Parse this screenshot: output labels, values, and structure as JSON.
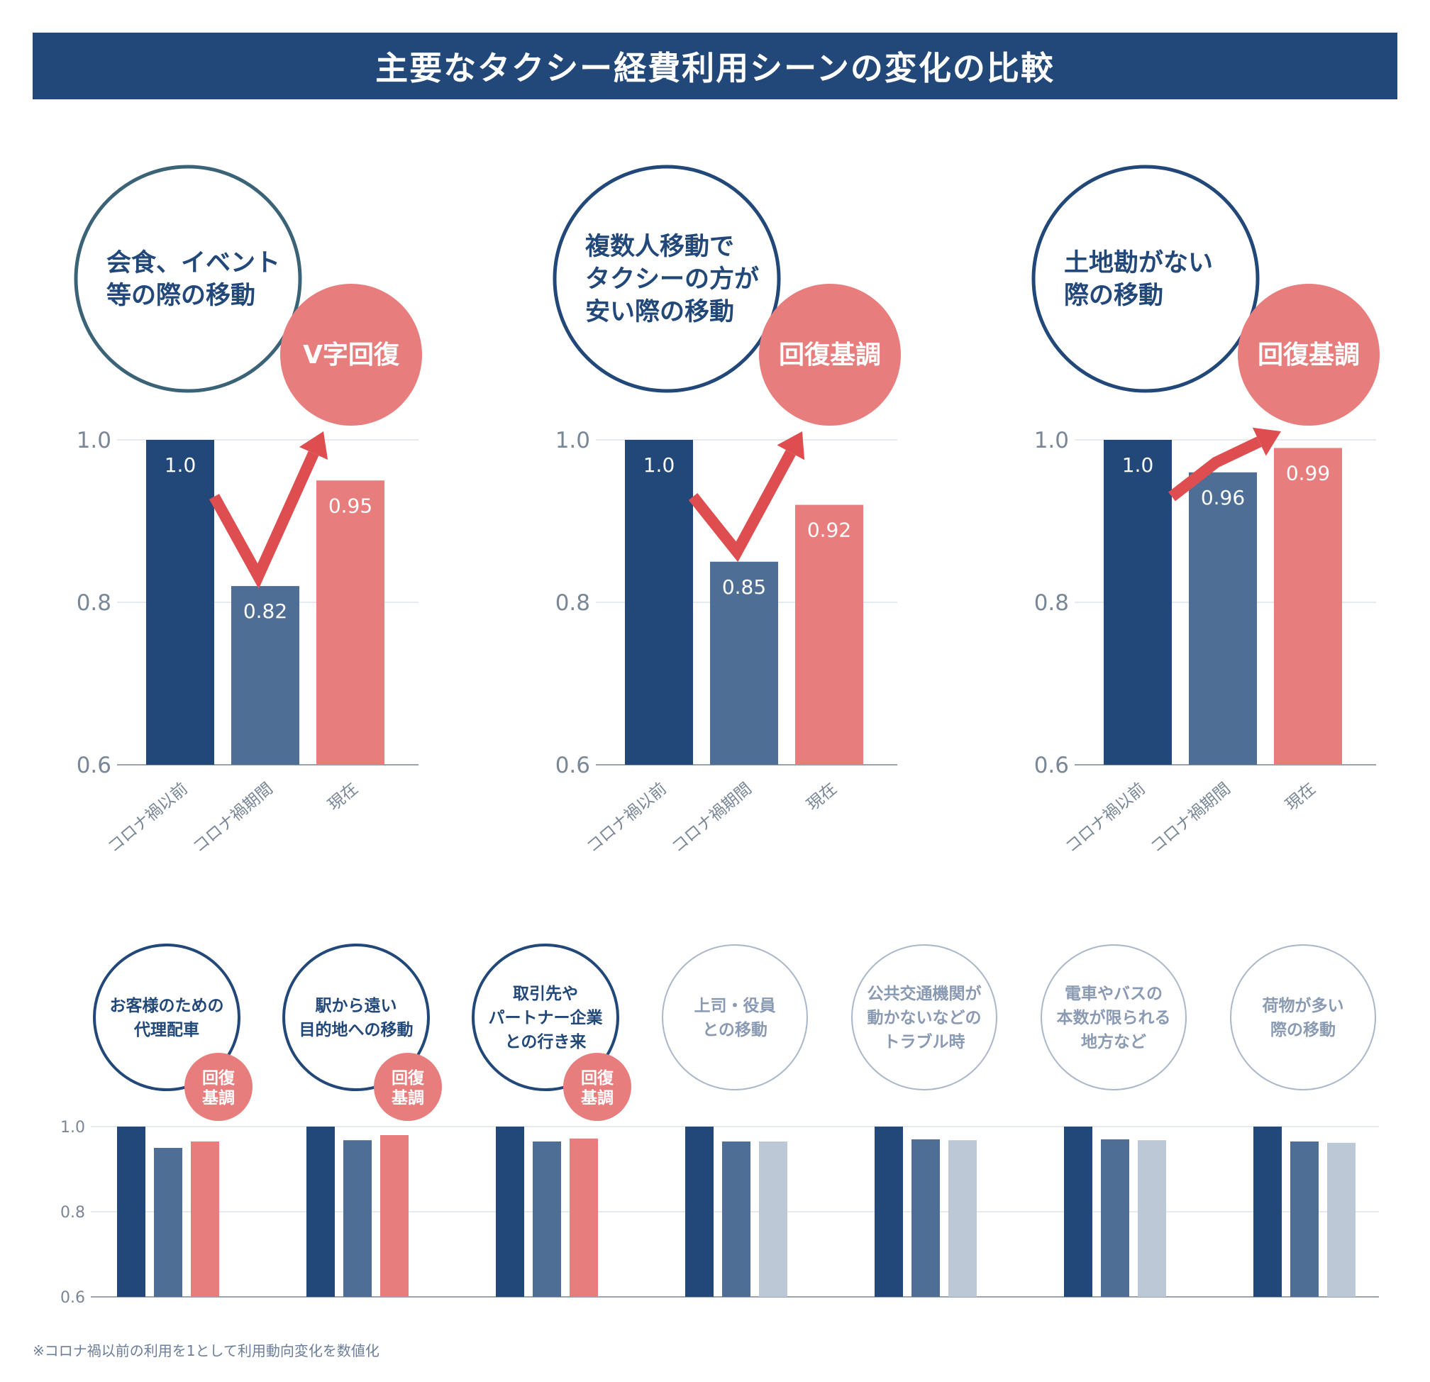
{
  "title": "主要なタクシー経費利用シーンの変化の比較",
  "note": "※コロナ禍以前の利用を1として利用動向変化を数値化",
  "colors": {
    "navy": "#22487a",
    "mid_blue": "#4e6e96",
    "mid_blue_2": "#637e9d",
    "salmon": "#e87d7d",
    "gray_blue": "#bcc8d6",
    "arrow_red": "#de4e50",
    "grid": "#e6e9ee",
    "axis": "#9aa4b0",
    "tick": "#7a8796",
    "gray_text": "#8a9ab2"
  },
  "chart_data": [
    {
      "type": "bar",
      "title": "会食、イベント等の際の移動",
      "title_lines": [
        "会食、イベント",
        "等の際の移動"
      ],
      "badge": "V字回復",
      "categories": [
        "コロナ禍以前",
        "コロナ禍期間",
        "現在"
      ],
      "values": [
        1.0,
        0.82,
        0.95
      ],
      "value_labels": [
        "1.0",
        "0.82",
        "0.95"
      ],
      "ylim": [
        0.6,
        1.0
      ],
      "yticks": [
        "0.6",
        "0.8",
        "1.0"
      ],
      "grid": true
    },
    {
      "type": "bar",
      "title": "複数人移動でタクシーの方が安い際の移動",
      "title_lines": [
        "複数人移動で",
        "タクシーの方が",
        "安い際の移動"
      ],
      "badge": "回復基調",
      "categories": [
        "コロナ禍以前",
        "コロナ禍期間",
        "現在"
      ],
      "values": [
        1.0,
        0.85,
        0.92
      ],
      "value_labels": [
        "1.0",
        "0.85",
        "0.92"
      ],
      "ylim": [
        0.6,
        1.0
      ],
      "yticks": [
        "0.6",
        "0.8",
        "1.0"
      ],
      "grid": true
    },
    {
      "type": "bar",
      "title": "土地勘がない際の移動",
      "title_lines": [
        "土地勘がない",
        "際の移動"
      ],
      "badge": "回復基調",
      "categories": [
        "コロナ禍以前",
        "コロナ禍期間",
        "現在"
      ],
      "values": [
        1.0,
        0.96,
        0.99
      ],
      "value_labels": [
        "1.0",
        "0.96",
        "0.99"
      ],
      "ylim": [
        0.6,
        1.0
      ],
      "yticks": [
        "0.6",
        "0.8",
        "1.0"
      ],
      "grid": true
    },
    {
      "type": "bar",
      "ylim": [
        0.6,
        1.0
      ],
      "yticks": [
        "0.6",
        "0.8",
        "1.0"
      ],
      "grid": true,
      "groups": [
        {
          "lines": [
            "お客様のための",
            "代理配車"
          ],
          "badge_lines": [
            "回復",
            "基調"
          ],
          "highlight": true,
          "values": [
            1.0,
            0.95,
            0.965
          ]
        },
        {
          "lines": [
            "駅から遠い",
            "目的地への移動"
          ],
          "badge_lines": [
            "回復",
            "基調"
          ],
          "highlight": true,
          "values": [
            1.0,
            0.968,
            0.98
          ]
        },
        {
          "lines": [
            "取引先や",
            "パートナー企業",
            "との行き来"
          ],
          "badge_lines": [
            "回復",
            "基調"
          ],
          "highlight": true,
          "values": [
            1.0,
            0.965,
            0.972
          ]
        },
        {
          "lines": [
            "上司・役員",
            "との移動"
          ],
          "highlight": false,
          "values": [
            1.0,
            0.965,
            0.965
          ]
        },
        {
          "lines": [
            "公共交通機関が",
            "動かないなどの",
            "トラブル時"
          ],
          "highlight": false,
          "values": [
            1.0,
            0.97,
            0.968
          ]
        },
        {
          "lines": [
            "電車やバスの",
            "本数が限られる",
            "地方など"
          ],
          "highlight": false,
          "values": [
            1.0,
            0.97,
            0.968
          ]
        },
        {
          "lines": [
            "荷物が多い",
            "際の移動"
          ],
          "highlight": false,
          "values": [
            1.0,
            0.965,
            0.962
          ]
        }
      ]
    }
  ]
}
